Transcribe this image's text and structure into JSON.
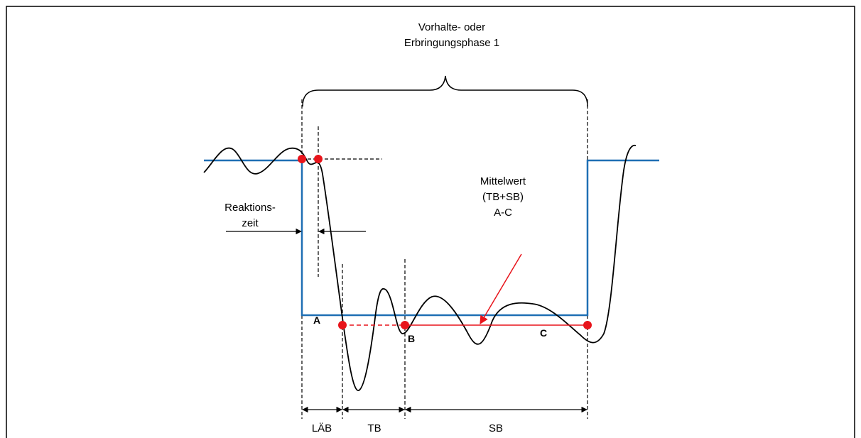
{
  "colors": {
    "frame": "#000000",
    "target_line": "#1f6fb4",
    "signal": "#000000",
    "marker": "#e8141b",
    "dashed": "#000000"
  },
  "labels": {
    "phase_line1": "Vorhalte- oder",
    "phase_line2": "Erbringungsphase  1",
    "reaction_line1": "Reaktions-",
    "reaction_line2": "zeit",
    "mean_line1": "Mittelwert",
    "mean_line2": "(TB+SB)",
    "mean_line3": "A-C",
    "point_a": "A",
    "point_b": "B",
    "point_c": "C",
    "interval_lab": "LÄB",
    "interval_tb": "TB",
    "interval_sb": "SB"
  }
}
